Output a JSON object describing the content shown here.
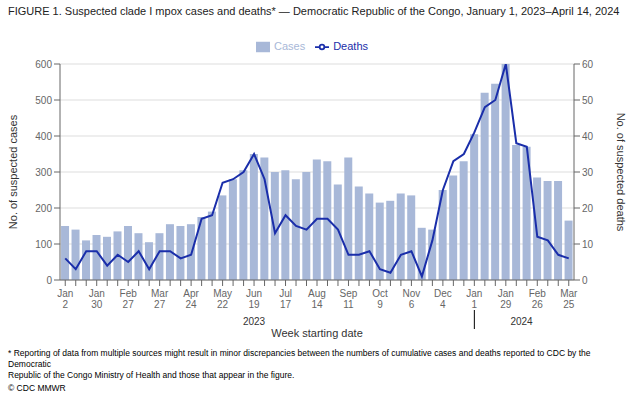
{
  "chart_data": {
    "type": "bar",
    "title": "FIGURE 1. Suspected clade I mpox cases and deaths* — Democratic Republic of the Congo, January 1, 2023–April 14, 2024",
    "x_label": "Week starting date",
    "y_label": "No. of suspected cases",
    "y2_label": "No. of suspected deaths",
    "footnote": "* Reporting of data from multiple sources might result in minor discrepancies between the numbers of cumulative cases and deaths reported to CDC by the Democratic\nRepublic of the Congo Ministry of Health and those that appear in the figure.",
    "source": "© CDC MMWR",
    "categories": [
      "Jan\n2",
      null,
      null,
      "Jan\n30",
      null,
      null,
      "Feb\n27",
      null,
      null,
      "Mar\n27",
      null,
      null,
      "Apr\n24",
      null,
      null,
      "May\n22",
      null,
      null,
      "Jun\n19",
      null,
      null,
      "Jul\n17",
      null,
      null,
      "Aug\n14",
      null,
      null,
      "Sep\n11",
      null,
      null,
      "Oct\n9",
      null,
      null,
      "Nov\n6",
      null,
      null,
      "Dec\n4",
      null,
      null,
      "Jan\n1",
      null,
      null,
      "Jan\n29",
      null,
      null,
      "Feb\n26",
      null,
      null,
      "Mar\n25"
    ],
    "series": [
      {
        "name": "Cases",
        "type": "bar",
        "color": "#a8b8d8",
        "values": [
          150,
          140,
          110,
          125,
          120,
          135,
          150,
          130,
          105,
          130,
          155,
          150,
          155,
          175,
          190,
          235,
          280,
          305,
          350,
          340,
          300,
          305,
          280,
          300,
          335,
          330,
          265,
          340,
          260,
          240,
          215,
          220,
          240,
          235,
          145,
          140,
          250,
          290,
          330,
          405,
          520,
          545,
          600,
          375,
          370,
          285,
          275,
          275,
          165
        ]
      },
      {
        "name": "Deaths",
        "type": "line",
        "axis": "y2",
        "color": "#1a2eaa",
        "values": [
          6,
          3,
          8,
          8,
          4,
          7,
          5,
          8,
          3,
          8,
          8,
          6,
          7,
          17,
          18,
          27,
          28,
          30,
          35,
          28,
          13,
          18,
          15,
          14,
          17,
          17,
          14,
          7,
          7,
          8,
          3,
          2,
          7,
          8,
          1,
          11,
          25,
          33,
          35,
          41,
          48,
          50,
          60,
          38,
          37,
          12,
          11,
          7,
          6
        ]
      }
    ],
    "ylim": [
      0,
      600
    ],
    "yticks": [
      0,
      100,
      200,
      300,
      400,
      500,
      600
    ],
    "y2lim": [
      0,
      60
    ],
    "y2ticks": [
      0,
      10,
      20,
      30,
      40,
      50,
      60
    ],
    "grid": true,
    "annotations": [
      {
        "text": "2023",
        "from": "Jan\n2",
        "to": "Dec\n4"
      },
      {
        "text": "2024",
        "from": "Jan\n1",
        "to": "Mar\n25"
      }
    ]
  }
}
